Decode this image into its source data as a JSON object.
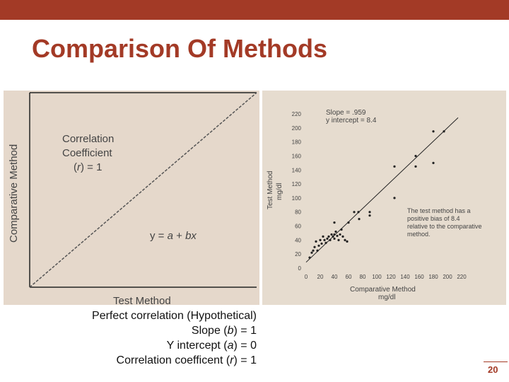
{
  "slide": {
    "title": "Comparison Of Methods",
    "page_number": "20",
    "colors": {
      "accent": "#a33a26",
      "panel_left": "#e5d8cb",
      "panel_right": "#e6dccf"
    }
  },
  "caption": {
    "line1": "Perfect correlation (Hypothetical)",
    "line2_pre": "Slope (",
    "line2_var": "b",
    "line2_post": ") = 1",
    "line3_pre": "Y intercept (",
    "line3_var": "a",
    "line3_post": ") = 0",
    "line4_pre": "Correlation coefficent (",
    "line4_var": "r",
    "line4_post": ") = 1"
  },
  "chart_data": [
    {
      "type": "line",
      "xlabel": "Test Method",
      "ylabel": "Comparative Method",
      "x": [
        0,
        1
      ],
      "series": [
        {
          "values": [
            0,
            1
          ]
        }
      ],
      "annotations": {
        "corr1": "Correlation",
        "corr2": "Coefficient",
        "corr3_pre": "(",
        "corr3_var": "r",
        "corr3_post": ") = 1",
        "eq_pre": "y = ",
        "eq_a": "a",
        "eq_mid": " + ",
        "eq_bx": "bx"
      },
      "grid": false
    },
    {
      "type": "scatter",
      "xlabel": "Comparative Method",
      "xunit": "mg/dl",
      "ylabel": "Test Method",
      "yunit": "mg/dl",
      "xlim": [
        0,
        220
      ],
      "ylim": [
        0,
        220
      ],
      "xticks": [
        0,
        20,
        40,
        60,
        80,
        100,
        120,
        140,
        160,
        180,
        200,
        220
      ],
      "yticks": [
        0,
        20,
        40,
        60,
        80,
        100,
        120,
        140,
        160,
        180,
        200,
        220
      ],
      "points": [
        [
          5,
          15
        ],
        [
          8,
          22
        ],
        [
          10,
          25
        ],
        [
          12,
          30
        ],
        [
          14,
          38
        ],
        [
          16,
          25
        ],
        [
          18,
          32
        ],
        [
          20,
          40
        ],
        [
          22,
          35
        ],
        [
          24,
          45
        ],
        [
          26,
          40
        ],
        [
          28,
          36
        ],
        [
          30,
          42
        ],
        [
          32,
          45
        ],
        [
          34,
          40
        ],
        [
          36,
          48
        ],
        [
          38,
          45
        ],
        [
          40,
          42
        ],
        [
          40,
          48
        ],
        [
          42,
          52
        ],
        [
          44,
          46
        ],
        [
          46,
          40
        ],
        [
          48,
          48
        ],
        [
          50,
          55
        ],
        [
          52,
          45
        ],
        [
          55,
          40
        ],
        [
          58,
          38
        ],
        [
          40,
          65
        ],
        [
          60,
          65
        ],
        [
          68,
          80
        ],
        [
          74,
          80
        ],
        [
          75,
          70
        ],
        [
          90,
          80
        ],
        [
          90,
          75
        ],
        [
          125,
          100
        ],
        [
          125,
          145
        ],
        [
          155,
          160
        ],
        [
          155,
          145
        ],
        [
          180,
          150
        ],
        [
          180,
          195
        ],
        [
          195,
          195
        ]
      ],
      "fit": {
        "slope": 0.959,
        "intercept": 8.4
      },
      "annotations": {
        "slope_text": "Slope = .959",
        "intercept_text": "y intercept = 8.4",
        "bias_1": "The test method has a",
        "bias_2": "positive bias of 8.4",
        "bias_3": "relative to the comparative",
        "bias_4": "method."
      },
      "grid": false
    }
  ]
}
